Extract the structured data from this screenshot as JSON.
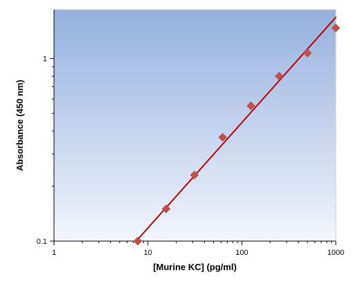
{
  "chart_data": {
    "type": "scatter",
    "title": "",
    "xlabel": "[Murine KC] (pg/ml)",
    "ylabel": "Absorbance (450 nm)",
    "x_scale": "log",
    "y_scale": "log",
    "xlim": [
      1,
      1000
    ],
    "ylim": [
      0.1,
      1.85
    ],
    "x_ticks": [
      1,
      10,
      100,
      1000
    ],
    "x_tick_labels": [
      "1",
      "10",
      "100",
      "1000"
    ],
    "y_ticks": [
      0.1,
      1
    ],
    "y_tick_labels": [
      "0.1",
      "1"
    ],
    "grid": false,
    "legend": "none",
    "series": [
      {
        "x": [
          7.8,
          15.6,
          31.25,
          62.5,
          125,
          250,
          500,
          1000
        ],
        "y": [
          0.1,
          0.15,
          0.23,
          0.37,
          0.55,
          0.8,
          1.07,
          1.47
        ],
        "marker": "diamond",
        "color": "#c0504d"
      }
    ],
    "fit_line": {
      "x": [
        7.5,
        1000
      ],
      "y": [
        0.1,
        1.68
      ],
      "color": "#c00000"
    },
    "plot_background_gradient": [
      "#94b0de",
      "#f2f5fb"
    ]
  }
}
